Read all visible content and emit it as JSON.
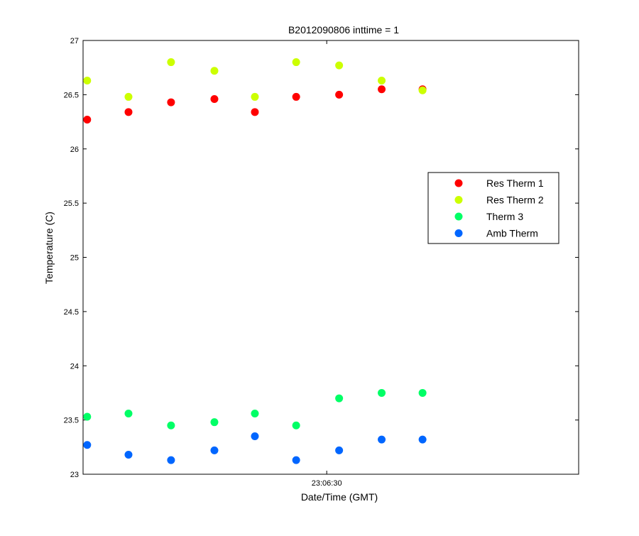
{
  "chart_data": {
    "type": "scatter",
    "title": "B2012090806 inttime = 1",
    "xlabel": "Date/Time (GMT)",
    "ylabel": "Temperature (C)",
    "ylim": [
      23,
      27
    ],
    "xlim": [
      0,
      12
    ],
    "grid": false,
    "legend_position": "right-center",
    "y_ticks": [
      {
        "value": 23,
        "label": "23"
      },
      {
        "value": 23.5,
        "label": "23.5"
      },
      {
        "value": 24,
        "label": "24"
      },
      {
        "value": 24.5,
        "label": "24.5"
      },
      {
        "value": 25,
        "label": "25"
      },
      {
        "value": 25.5,
        "label": "25.5"
      },
      {
        "value": 26,
        "label": "26"
      },
      {
        "value": 26.5,
        "label": "26.5"
      },
      {
        "value": 27,
        "label": "27"
      }
    ],
    "x_ticks": [
      {
        "value": 5.9,
        "label": "23:06:30"
      }
    ],
    "x": [
      0.1,
      1.1,
      2.13,
      3.18,
      4.16,
      5.16,
      6.2,
      7.23,
      8.22
    ],
    "series": [
      {
        "name": "Res Therm 1",
        "color": "#ff0000",
        "values": [
          26.27,
          26.34,
          26.43,
          26.46,
          26.34,
          26.48,
          26.5,
          26.55,
          26.55
        ]
      },
      {
        "name": "Res Therm 2",
        "color": "#ccff00",
        "values": [
          26.63,
          26.48,
          26.8,
          26.72,
          26.48,
          26.8,
          26.77,
          26.63,
          26.54
        ]
      },
      {
        "name": "Therm 3",
        "color": "#00ff66",
        "values": [
          23.53,
          23.56,
          23.45,
          23.48,
          23.56,
          23.45,
          23.7,
          23.75,
          23.75
        ]
      },
      {
        "name": "Amb Therm",
        "color": "#0066ff",
        "values": [
          23.27,
          23.18,
          23.13,
          23.22,
          23.35,
          23.13,
          23.22,
          23.32,
          23.32
        ]
      }
    ]
  }
}
